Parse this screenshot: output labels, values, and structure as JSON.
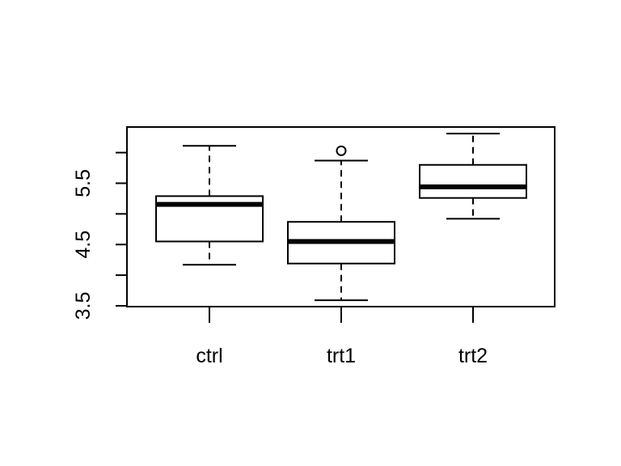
{
  "chart_data": {
    "type": "boxplot",
    "title": "",
    "xlabel": "",
    "ylabel": "",
    "categories": [
      "ctrl",
      "trt1",
      "trt2"
    ],
    "ylim": [
      3.5,
      6.55
    ],
    "yticks": [
      3.5,
      4.0,
      4.5,
      5.0,
      5.5,
      6.0
    ],
    "ytick_labels": [
      "3.5",
      "",
      "4.5",
      "",
      "5.5",
      ""
    ],
    "boxes": [
      {
        "category": "ctrl",
        "whisker_low": 4.17,
        "q1": 4.55,
        "median": 5.155,
        "q3": 5.29,
        "whisker_high": 6.11,
        "outliers": []
      },
      {
        "category": "trt1",
        "whisker_low": 3.59,
        "q1": 4.19,
        "median": 4.55,
        "q3": 4.87,
        "whisker_high": 5.87,
        "outliers": [
          6.03
        ]
      },
      {
        "category": "trt2",
        "whisker_low": 4.92,
        "q1": 5.26,
        "median": 5.44,
        "q3": 5.8,
        "whisker_high": 6.31,
        "outliers": []
      }
    ],
    "grid": false,
    "legend": "none",
    "colors": {
      "stroke": "#000000",
      "box_fill": "#ffffff"
    }
  }
}
